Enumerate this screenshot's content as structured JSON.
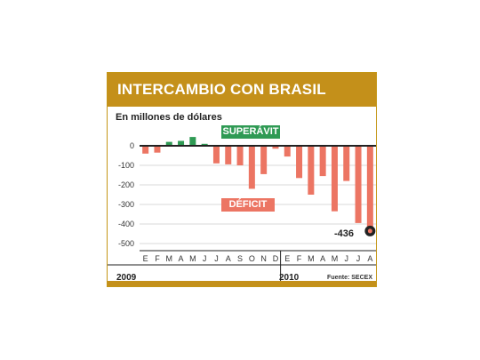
{
  "title": "INTERCAMBIO CON BRASIL",
  "subtitle": "En millones de dólares",
  "surplus_label": "SUPERÁVIT",
  "deficit_label": "DÉFICIT",
  "highlight_value_label": "-436",
  "years": [
    "2009",
    "2010"
  ],
  "source": "Fuente: SECEX",
  "colors": {
    "brand": "#c4901a",
    "surplus": "#2f9a54",
    "deficit": "#ec7563",
    "marker": "#222222"
  },
  "chart_data": {
    "type": "bar",
    "title": "INTERCAMBIO CON BRASIL",
    "ylabel": "En millones de dólares",
    "categories": [
      "E",
      "F",
      "M",
      "A",
      "M",
      "J",
      "J",
      "A",
      "S",
      "O",
      "N",
      "D",
      "E",
      "F",
      "M",
      "A",
      "M",
      "J",
      "J",
      "A"
    ],
    "values": [
      -40,
      -35,
      20,
      25,
      45,
      10,
      -90,
      -95,
      -100,
      -220,
      -145,
      -15,
      -55,
      -165,
      -250,
      -155,
      -335,
      -180,
      -395,
      -436
    ],
    "ylim": [
      -500,
      0
    ],
    "yticks": [
      0,
      -100,
      -200,
      -300,
      -400,
      -500
    ],
    "grid": true,
    "highlighted": {
      "index": 19,
      "value": -436
    }
  }
}
